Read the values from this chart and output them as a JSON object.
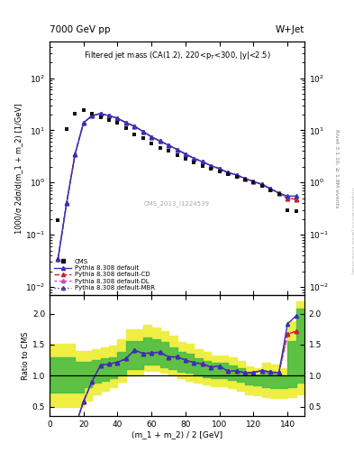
{
  "title_left": "7000 GeV pp",
  "title_right": "W+Jet",
  "panel_title": "Filtered jet mass (CA(1.2), 220<p_{T}<300, |y|<2.5)",
  "xlabel": "(m_1 + m_2) / 2 [GeV]",
  "ylabel_main": "1000/σ 2dσ/d(m_1 + m_2) [1/GeV]",
  "ylabel_ratio": "Ratio to CMS",
  "ylabel_right_main": "Rivet 3.1.10, ≥ 1.8M events",
  "watermark": "mcplots.cern.ch [arXiv:1306.3436]",
  "dataset_label": "CMS_2013_I1224539",
  "xlim": [
    0,
    150
  ],
  "ylim_main": [
    0.007,
    500
  ],
  "ylim_ratio": [
    0.35,
    2.3
  ],
  "ratio_yticks": [
    0.5,
    1.0,
    1.5,
    2.0
  ],
  "x_data": [
    5,
    10,
    15,
    20,
    25,
    30,
    35,
    40,
    45,
    50,
    55,
    60,
    65,
    70,
    75,
    80,
    85,
    90,
    95,
    100,
    105,
    110,
    115,
    120,
    125,
    130,
    135,
    140,
    145
  ],
  "cms_y": [
    0.19,
    10.5,
    21,
    24,
    21,
    18,
    16,
    14,
    11,
    8.5,
    7,
    5.5,
    4.5,
    4.0,
    3.3,
    2.8,
    2.4,
    2.1,
    1.85,
    1.6,
    1.45,
    1.3,
    1.15,
    1.0,
    0.85,
    0.72,
    0.6,
    0.3,
    0.28
  ],
  "pythia_default_y": [
    0.035,
    0.4,
    3.5,
    14,
    19,
    21,
    19,
    17,
    14,
    12,
    9.5,
    7.5,
    6.2,
    5.2,
    4.3,
    3.5,
    2.9,
    2.5,
    2.1,
    1.85,
    1.55,
    1.4,
    1.2,
    1.05,
    0.92,
    0.76,
    0.63,
    0.55,
    0.55
  ],
  "pythia_cd_y": [
    0.035,
    0.4,
    3.5,
    14,
    19,
    21,
    19,
    17,
    14,
    12,
    9.5,
    7.5,
    6.2,
    5.2,
    4.3,
    3.5,
    2.9,
    2.5,
    2.1,
    1.85,
    1.55,
    1.4,
    1.2,
    1.05,
    0.92,
    0.76,
    0.63,
    0.5,
    0.48
  ],
  "pythia_dl_y": [
    0.035,
    0.4,
    3.5,
    14,
    19,
    21,
    19,
    17,
    14,
    12,
    9.5,
    7.5,
    6.2,
    5.2,
    4.3,
    3.5,
    2.9,
    2.5,
    2.1,
    1.85,
    1.55,
    1.4,
    1.2,
    1.05,
    0.92,
    0.76,
    0.63,
    0.5,
    0.48
  ],
  "pythia_mbr_y": [
    0.035,
    0.4,
    3.5,
    14,
    19,
    21,
    19,
    17,
    14,
    12,
    9.5,
    7.5,
    6.2,
    5.2,
    4.3,
    3.5,
    2.9,
    2.5,
    2.1,
    1.85,
    1.55,
    1.4,
    1.2,
    1.05,
    0.92,
    0.76,
    0.63,
    0.5,
    0.48
  ],
  "ratio_x": [
    5,
    10,
    15,
    20,
    25,
    30,
    35,
    40,
    45,
    50,
    55,
    60,
    65,
    70,
    75,
    80,
    85,
    90,
    95,
    100,
    105,
    110,
    115,
    120,
    125,
    130,
    135,
    140,
    145
  ],
  "ratio_default": [
    0.18,
    0.038,
    0.167,
    0.583,
    0.905,
    1.167,
    1.188,
    1.214,
    1.273,
    1.412,
    1.357,
    1.364,
    1.378,
    1.3,
    1.303,
    1.25,
    1.208,
    1.19,
    1.135,
    1.156,
    1.069,
    1.077,
    1.043,
    1.05,
    1.082,
    1.056,
    1.05,
    1.833,
    1.964
  ],
  "ratio_cd": [
    0.18,
    0.038,
    0.167,
    0.583,
    0.905,
    1.167,
    1.188,
    1.214,
    1.273,
    1.412,
    1.357,
    1.364,
    1.378,
    1.3,
    1.303,
    1.25,
    1.208,
    1.19,
    1.135,
    1.156,
    1.069,
    1.077,
    1.043,
    1.05,
    1.082,
    1.056,
    1.05,
    1.667,
    1.714
  ],
  "ratio_dl": [
    0.18,
    0.038,
    0.167,
    0.583,
    0.905,
    1.167,
    1.188,
    1.214,
    1.273,
    1.412,
    1.357,
    1.364,
    1.378,
    1.3,
    1.303,
    1.25,
    1.208,
    1.19,
    1.135,
    1.156,
    1.069,
    1.077,
    1.043,
    1.05,
    1.082,
    1.056,
    1.05,
    1.667,
    1.714
  ],
  "ratio_mbr": [
    0.18,
    0.038,
    0.167,
    0.583,
    0.905,
    1.167,
    1.188,
    1.214,
    1.273,
    1.412,
    1.357,
    1.364,
    1.378,
    1.3,
    1.303,
    1.25,
    1.208,
    1.19,
    1.135,
    1.156,
    1.069,
    1.077,
    1.043,
    1.05,
    1.082,
    1.056,
    1.05,
    1.667,
    1.714
  ],
  "band_x_edges": [
    0,
    5,
    10,
    15,
    20,
    25,
    30,
    35,
    40,
    45,
    50,
    55,
    60,
    65,
    70,
    75,
    80,
    85,
    90,
    95,
    100,
    105,
    110,
    115,
    120,
    125,
    130,
    135,
    140,
    145,
    150
  ],
  "band_green_lo": [
    0.72,
    0.72,
    0.72,
    0.72,
    0.82,
    0.88,
    0.92,
    0.96,
    1.02,
    1.1,
    1.1,
    1.18,
    1.18,
    1.14,
    1.1,
    1.06,
    1.04,
    1.0,
    0.97,
    0.96,
    0.96,
    0.93,
    0.9,
    0.86,
    0.84,
    0.82,
    0.8,
    0.8,
    0.82,
    0.88,
    0.88
  ],
  "band_green_hi": [
    1.3,
    1.3,
    1.3,
    1.22,
    1.22,
    1.25,
    1.28,
    1.3,
    1.38,
    1.55,
    1.55,
    1.62,
    1.58,
    1.54,
    1.46,
    1.38,
    1.36,
    1.28,
    1.24,
    1.2,
    1.2,
    1.17,
    1.12,
    1.05,
    1.02,
    1.08,
    1.05,
    1.0,
    1.55,
    2.08,
    2.08
  ],
  "band_yellow_lo": [
    0.5,
    0.5,
    0.5,
    0.5,
    0.6,
    0.7,
    0.76,
    0.82,
    0.9,
    1.0,
    1.0,
    1.08,
    1.08,
    1.04,
    1.0,
    0.96,
    0.92,
    0.88,
    0.85,
    0.83,
    0.83,
    0.8,
    0.76,
    0.7,
    0.68,
    0.66,
    0.64,
    0.64,
    0.66,
    0.7,
    0.7
  ],
  "band_yellow_hi": [
    1.52,
    1.52,
    1.52,
    1.4,
    1.4,
    1.43,
    1.46,
    1.48,
    1.58,
    1.74,
    1.74,
    1.82,
    1.78,
    1.72,
    1.64,
    1.54,
    1.52,
    1.42,
    1.38,
    1.33,
    1.33,
    1.3,
    1.24,
    1.15,
    1.12,
    1.2,
    1.18,
    1.12,
    1.88,
    2.2,
    2.2
  ],
  "color_default": "#3333bb",
  "color_cd": "#cc2222",
  "color_dl": "#cc44cc",
  "color_mbr": "#4444aa",
  "color_cms": "#111111",
  "color_green": "#44bb44",
  "color_yellow": "#eeee44",
  "legend_entries": [
    "CMS",
    "Pythia 8.308 default",
    "Pythia 8.308 default-CD",
    "Pythia 8.308 default-DL",
    "Pythia 8.308 default-MBR"
  ]
}
